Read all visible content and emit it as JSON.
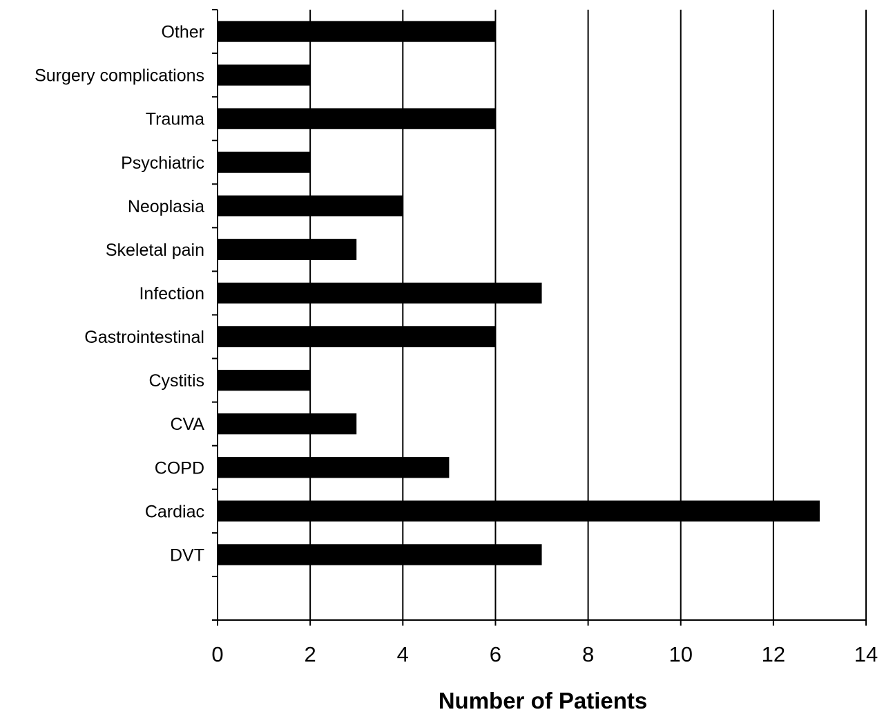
{
  "chart_data": {
    "type": "bar",
    "orientation": "horizontal",
    "categories": [
      "Other",
      "Surgery complications",
      "Trauma",
      "Psychiatric",
      "Neoplasia",
      "Skeletal pain",
      "Infection",
      "Gastrointestinal",
      "Cystitis",
      "CVA",
      "COPD",
      "Cardiac",
      "DVT"
    ],
    "values": [
      6,
      2,
      6,
      2,
      4,
      3,
      7,
      6,
      2,
      3,
      5,
      13,
      7
    ],
    "xlabel": "Number of Patients",
    "ylabel": "",
    "xlim": [
      0,
      14
    ],
    "xticks": [
      "0",
      "2",
      "4",
      "6",
      "8",
      "10",
      "12",
      "14"
    ],
    "grid": "vertical major gridlines",
    "legend": "none",
    "colors": {
      "bar": "#000000",
      "grid": "#000000",
      "background": "#ffffff"
    }
  }
}
